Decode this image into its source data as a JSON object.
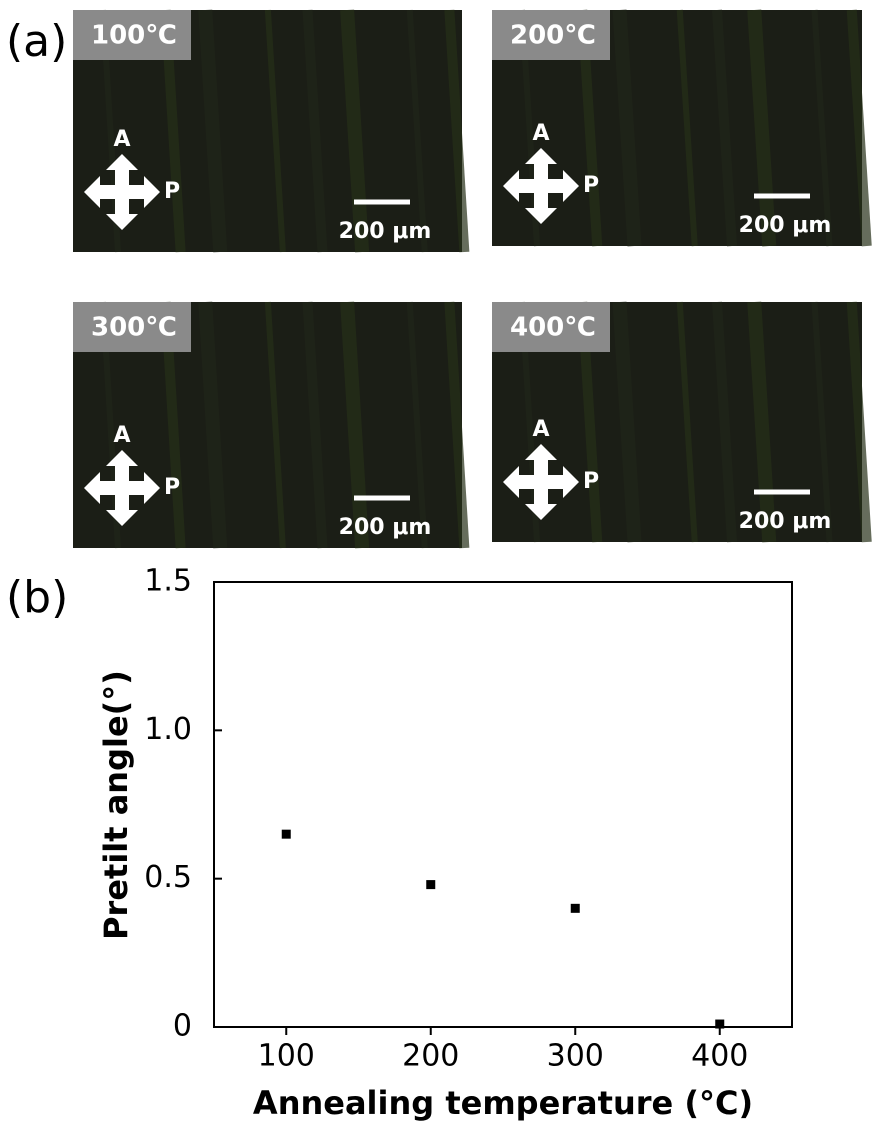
{
  "panel_labels": [
    "(a)",
    "(b)"
  ],
  "micrographs": [
    {
      "label": "100℃",
      "analyzer": "A",
      "polarizer": "P",
      "scale_bar": "200 μm"
    },
    {
      "label": "200℃",
      "analyzer": "A",
      "polarizer": "P",
      "scale_bar": "200 μm"
    },
    {
      "label": "300℃",
      "analyzer": "A",
      "polarizer": "P",
      "scale_bar": "200 μm"
    },
    {
      "label": "400℃",
      "analyzer": "A",
      "polarizer": "P",
      "scale_bar": "200 μm"
    }
  ],
  "chart_data": {
    "type": "scatter",
    "x_label": "Annealing temperature (°C)",
    "y_label": "Pretilt angle(°)",
    "x": [
      100,
      200,
      300,
      400
    ],
    "values": [
      0.65,
      0.48,
      0.4,
      0.01
    ],
    "color": "#000000",
    "xlim": [
      50,
      450
    ],
    "xticks": [
      100,
      200,
      300,
      400
    ],
    "ylim": [
      0,
      1.5
    ],
    "yticks": [
      0,
      0.5,
      {
        "value": 1,
        "label": "1.0"
      },
      1.5
    ]
  }
}
